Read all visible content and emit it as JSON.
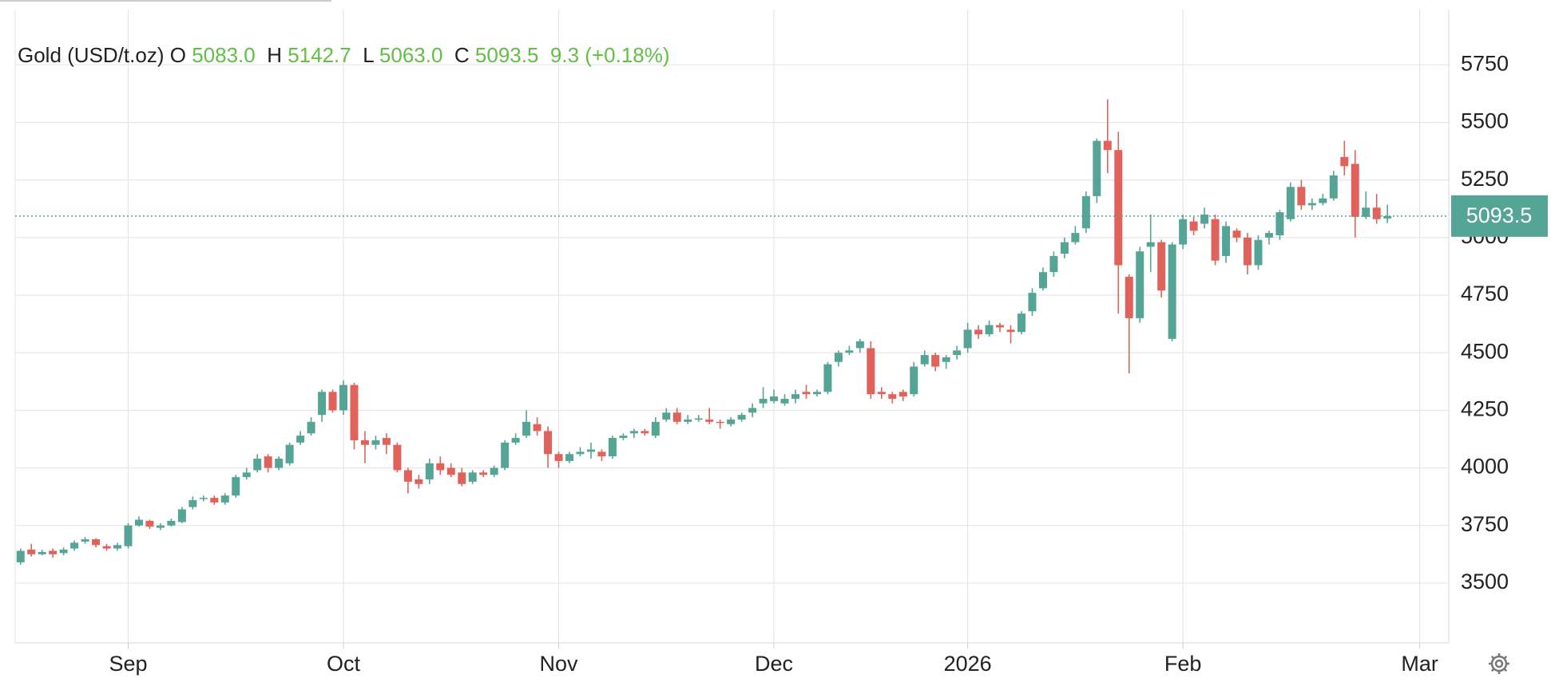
{
  "chart_data": {
    "type": "candlestick",
    "header": {
      "name": "Gold (USD/t.oz)",
      "keys": [
        "O",
        "H",
        "L",
        "C"
      ],
      "open": {
        "value": 5083.0,
        "label": "5083.0"
      },
      "high": {
        "value": 5142.7,
        "label": "5142.7"
      },
      "low": {
        "value": 5063.0,
        "label": "5063.0"
      },
      "close": {
        "value": 5093.5,
        "label": "5093.5"
      },
      "change": {
        "value": 9.3,
        "label": "9.3"
      },
      "change_pct": {
        "value": 0.18,
        "label": "(+0.18%)"
      }
    },
    "up_color": "#55a596",
    "down_color": "#e0625a",
    "last_color": "#55a596",
    "xlim": [
      -0.5,
      132.7
    ],
    "xticks": [
      {
        "value": 10,
        "label": "Sep"
      },
      {
        "value": 30,
        "label": "Oct"
      },
      {
        "value": 50,
        "label": "Nov"
      },
      {
        "value": 70,
        "label": "Dec"
      },
      {
        "value": 88,
        "label": "2026"
      },
      {
        "value": 108,
        "label": "Feb"
      },
      {
        "value": 130,
        "label": "Mar"
      }
    ],
    "ylim": [
      3240,
      5990
    ],
    "yticks": [
      3500,
      3750,
      4000,
      4250,
      4500,
      4750,
      5000,
      5250,
      5500,
      5750
    ],
    "grid": true,
    "open": [
      3590,
      3645,
      3625,
      3640,
      3630,
      3650,
      3680,
      3690,
      3660,
      3650,
      3660,
      3750,
      3770,
      3740,
      3750,
      3765,
      3830,
      3865,
      3870,
      3850,
      3880,
      3960,
      3990,
      4050,
      4000,
      4020,
      4110,
      4150,
      4230,
      4330,
      4250,
      4360,
      4120,
      4100,
      4130,
      4100,
      3990,
      3950,
      3950,
      4020,
      4000,
      3980,
      3940,
      3980,
      3970,
      4000,
      4110,
      4140,
      4190,
      4160,
      4060,
      4030,
      4060,
      4070,
      4070,
      4050,
      4130,
      4150,
      4160,
      4140,
      4210,
      4240,
      4200,
      4210,
      4210,
      4200,
      4190,
      4210,
      4240,
      4280,
      4290,
      4280,
      4300,
      4330,
      4320,
      4330,
      4460,
      4500,
      4520,
      4520,
      4330,
      4320,
      4330,
      4320,
      4450,
      4490,
      4460,
      4490,
      4520,
      4600,
      4580,
      4620,
      4600,
      4590,
      4680,
      4780,
      4850,
      4930,
      4980,
      5040,
      5180,
      5420,
      5380,
      4830,
      4650,
      4960,
      4980,
      4560,
      4970,
      5070,
      5060,
      5080,
      4920,
      5030,
      5000,
      4880,
      5000,
      5010,
      5080,
      5220,
      5140,
      5150,
      5170,
      5350,
      5320,
      5090,
      5130,
      5083
    ],
    "high": [
      3650,
      3670,
      3645,
      3650,
      3655,
      3685,
      3700,
      3695,
      3670,
      3675,
      3760,
      3790,
      3775,
      3760,
      3780,
      3830,
      3875,
      3880,
      3880,
      3890,
      3970,
      4000,
      4060,
      4060,
      4050,
      4110,
      4160,
      4220,
      4340,
      4340,
      4380,
      4370,
      4160,
      4140,
      4150,
      4110,
      4000,
      3970,
      4040,
      4050,
      4020,
      4000,
      3990,
      3990,
      4010,
      4120,
      4150,
      4250,
      4220,
      4180,
      4070,
      4070,
      4090,
      4110,
      4080,
      4140,
      4150,
      4170,
      4170,
      4220,
      4260,
      4260,
      4230,
      4230,
      4260,
      4210,
      4220,
      4240,
      4280,
      4350,
      4340,
      4320,
      4340,
      4360,
      4340,
      4460,
      4510,
      4530,
      4560,
      4550,
      4350,
      4330,
      4340,
      4460,
      4510,
      4500,
      4490,
      4530,
      4630,
      4620,
      4640,
      4630,
      4620,
      4680,
      4780,
      4870,
      4940,
      5000,
      5050,
      5200,
      5430,
      5600,
      5460,
      4840,
      4960,
      5100,
      4990,
      4980,
      5100,
      5090,
      5130,
      5100,
      5070,
      5040,
      5020,
      5010,
      5030,
      5120,
      5240,
      5250,
      5170,
      5190,
      5290,
      5420,
      5380,
      5200,
      5190,
      5142.7
    ],
    "low": [
      3580,
      3615,
      3620,
      3610,
      3620,
      3640,
      3670,
      3655,
      3640,
      3640,
      3650,
      3745,
      3735,
      3730,
      3745,
      3760,
      3820,
      3855,
      3840,
      3840,
      3870,
      3950,
      3980,
      3980,
      3990,
      4010,
      4100,
      4140,
      4200,
      4240,
      4230,
      4080,
      4020,
      4080,
      4060,
      3980,
      3890,
      3910,
      3930,
      3970,
      3960,
      3920,
      3930,
      3960,
      3960,
      3990,
      4100,
      4130,
      4140,
      4000,
      4000,
      4020,
      4050,
      4040,
      4030,
      4040,
      4120,
      4130,
      4140,
      4130,
      4200,
      4190,
      4190,
      4200,
      4190,
      4170,
      4180,
      4200,
      4220,
      4260,
      4280,
      4270,
      4280,
      4300,
      4310,
      4320,
      4440,
      4490,
      4500,
      4300,
      4300,
      4280,
      4290,
      4310,
      4440,
      4420,
      4430,
      4470,
      4500,
      4560,
      4570,
      4590,
      4540,
      4580,
      4660,
      4770,
      4830,
      4910,
      4970,
      5020,
      5150,
      5280,
      4670,
      4410,
      4630,
      4850,
      4740,
      4550,
      4950,
      5010,
      5040,
      4880,
      4890,
      4980,
      4840,
      4860,
      4970,
      4990,
      5070,
      5120,
      5120,
      5140,
      5160,
      5270,
      5000,
      5080,
      5060,
      5063.0
    ],
    "close": [
      3640,
      3625,
      3635,
      3625,
      3645,
      3675,
      3690,
      3665,
      3650,
      3665,
      3750,
      3775,
      3745,
      3750,
      3770,
      3820,
      3860,
      3870,
      3850,
      3880,
      3960,
      3980,
      4040,
      4000,
      4040,
      4100,
      4140,
      4200,
      4330,
      4250,
      4360,
      4120,
      4100,
      4120,
      4100,
      3990,
      3940,
      3930,
      4020,
      3990,
      3970,
      3930,
      3980,
      3970,
      4000,
      4110,
      4130,
      4200,
      4160,
      4060,
      4030,
      4060,
      4070,
      4080,
      4050,
      4130,
      4140,
      4160,
      4150,
      4200,
      4240,
      4200,
      4210,
      4215,
      4200,
      4195,
      4210,
      4230,
      4260,
      4300,
      4310,
      4300,
      4320,
      4320,
      4330,
      4450,
      4500,
      4510,
      4550,
      4320,
      4320,
      4300,
      4310,
      4440,
      4490,
      4440,
      4480,
      4510,
      4600,
      4580,
      4620,
      4610,
      4590,
      4670,
      4760,
      4850,
      4920,
      4980,
      5020,
      5180,
      5420,
      5380,
      4880,
      4650,
      4940,
      4980,
      4770,
      4970,
      5080,
      5030,
      5100,
      4900,
      5050,
      5000,
      4880,
      4990,
      5020,
      5110,
      5220,
      5140,
      5150,
      5170,
      5270,
      5310,
      5090,
      5130,
      5080,
      5093.5
    ]
  }
}
